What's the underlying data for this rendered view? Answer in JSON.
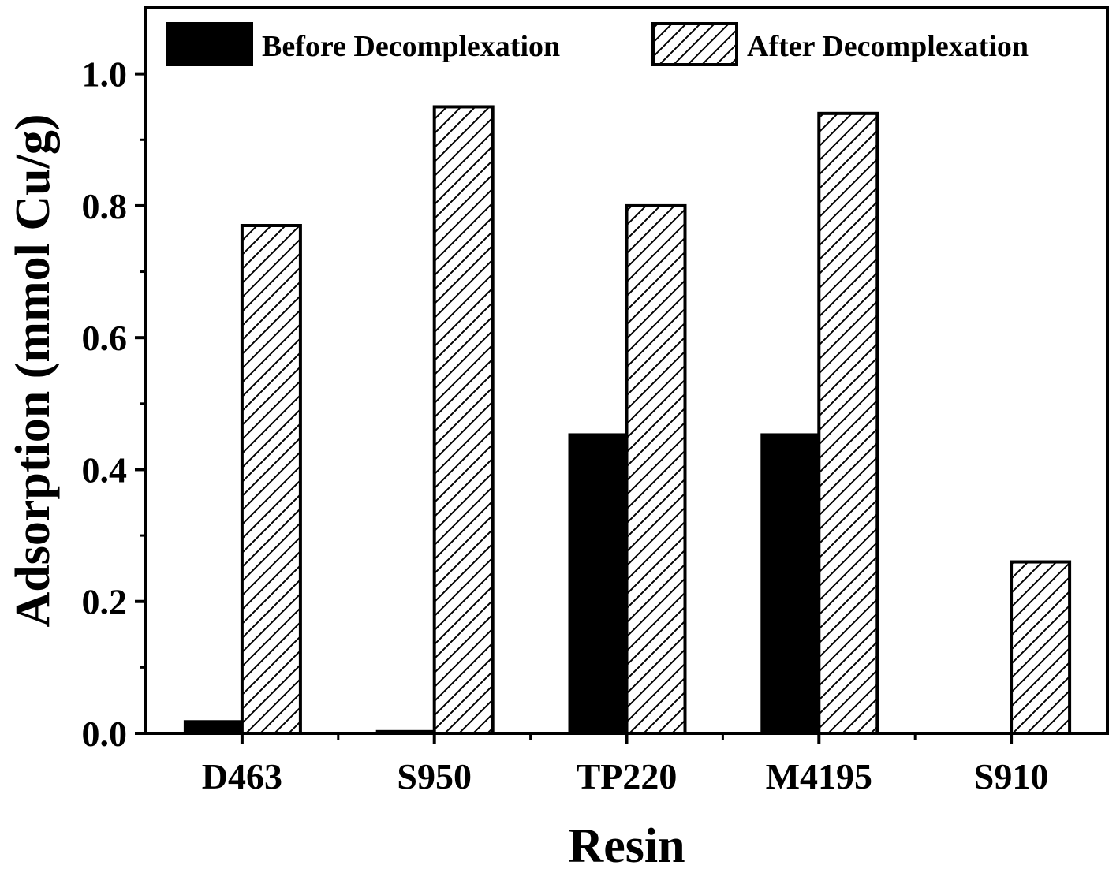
{
  "chart_data": {
    "type": "bar",
    "xlabel": "Resin",
    "ylabel": "Adsorption (mmol Cu/g)",
    "categories": [
      "D463",
      "S950",
      "TP220",
      "M4195",
      "S910"
    ],
    "series": [
      {
        "name": "Before Decomplexation",
        "values": [
          0.02,
          0.005,
          0.455,
          0.455,
          0.0
        ],
        "fill": "#000000",
        "pattern": "solid"
      },
      {
        "name": "After Decomplexation",
        "values": [
          0.77,
          0.95,
          0.8,
          0.94,
          0.26
        ],
        "fill": "#ffffff",
        "pattern": "diagonal-hatch"
      }
    ],
    "ylim": [
      0,
      1.1
    ],
    "yticks": [
      0.0,
      0.2,
      0.4,
      0.6,
      0.8,
      1.0
    ],
    "ytick_labels": [
      "0.0",
      "0.2",
      "0.4",
      "0.6",
      "0.8",
      "1.0"
    ],
    "minor_ticks": true,
    "grid": false,
    "legend_position": "top"
  }
}
